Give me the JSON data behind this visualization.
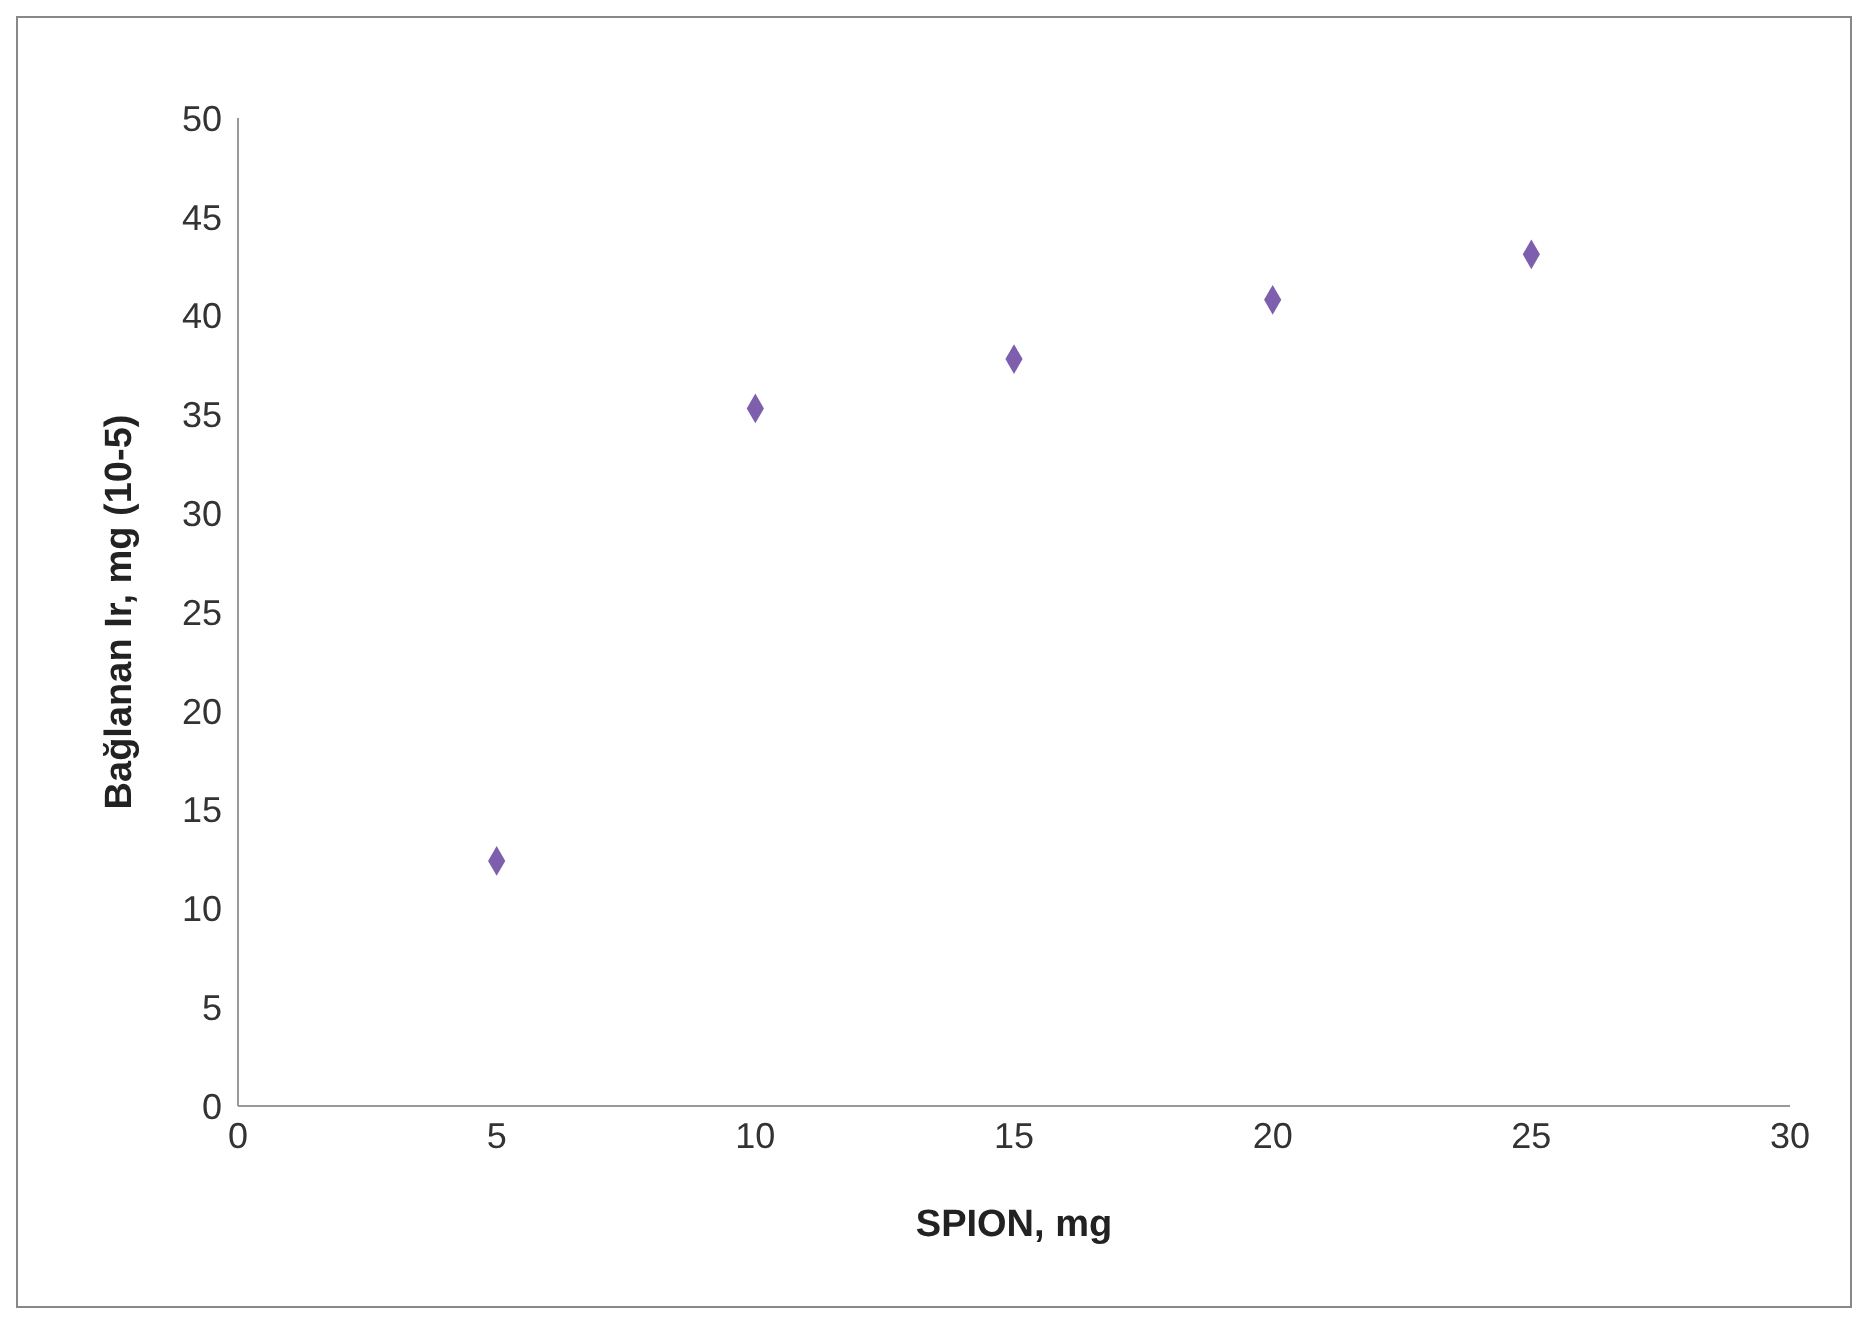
{
  "chart_data": {
    "type": "scatter",
    "xlabel": "SPION, mg",
    "ylabel": "Bağlanan Ir, mg (10-5)",
    "x": [
      5,
      10,
      15,
      20,
      25
    ],
    "series": [
      {
        "color": "#7e5fae",
        "values": [
          12.4,
          35.3,
          37.8,
          40.8,
          43.1
        ]
      }
    ],
    "xlim": [
      0,
      30
    ],
    "xticks": [
      0,
      5,
      10,
      15,
      20,
      25,
      30
    ],
    "ylim": [
      0,
      50
    ],
    "yticks": [
      0,
      5,
      10,
      15,
      20,
      25,
      30,
      35,
      40,
      45,
      50
    ],
    "grid": false,
    "legend": false,
    "marker": "diamond"
  }
}
